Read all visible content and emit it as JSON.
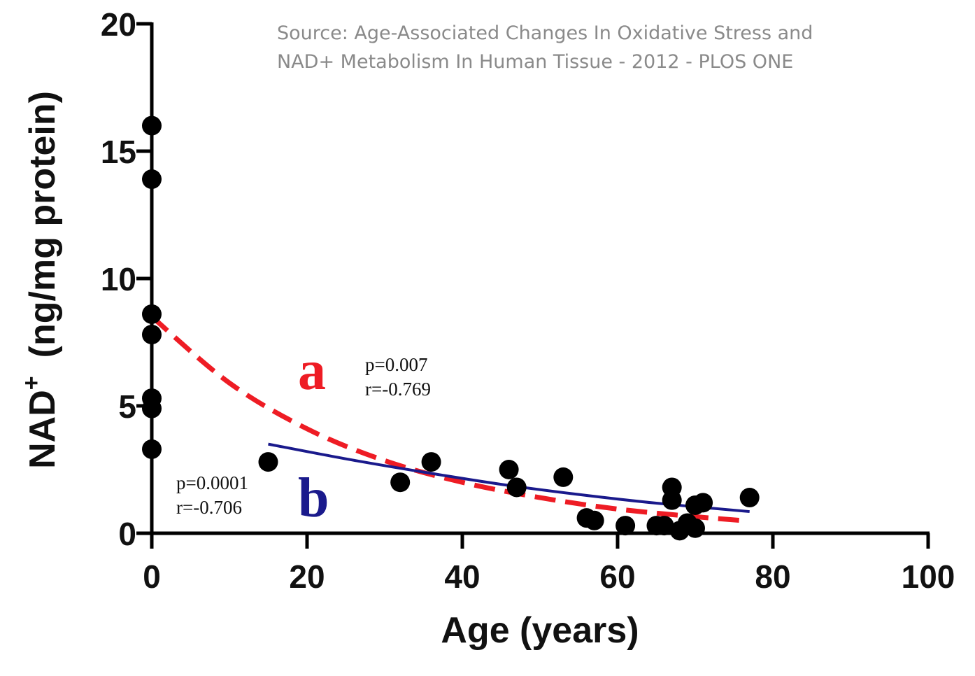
{
  "source": {
    "line1": "Source: Age-Associated Changes In Oxidative Stress and",
    "line2": "NAD+ Metabolism In Human Tissue - 2012 - PLOS ONE"
  },
  "chart_data": {
    "type": "scatter",
    "xlabel": "Age (years)",
    "ylabel_main": "NAD",
    "ylabel_sup": "+",
    "ylabel_unit": "(ng/mg protein)",
    "xlim": [
      0,
      100
    ],
    "ylim": [
      0,
      20
    ],
    "x_ticks": [
      0,
      20,
      40,
      60,
      80,
      100
    ],
    "y_ticks": [
      0,
      5,
      10,
      15,
      20
    ],
    "grid": false,
    "points": [
      {
        "x": 0,
        "y": 16.0
      },
      {
        "x": 0,
        "y": 13.9
      },
      {
        "x": 0,
        "y": 8.6
      },
      {
        "x": 0,
        "y": 7.8
      },
      {
        "x": 0,
        "y": 5.3
      },
      {
        "x": 0,
        "y": 4.9
      },
      {
        "x": 0,
        "y": 3.3
      },
      {
        "x": 15,
        "y": 2.8
      },
      {
        "x": 32,
        "y": 2.0
      },
      {
        "x": 36,
        "y": 2.8
      },
      {
        "x": 46,
        "y": 2.5
      },
      {
        "x": 47,
        "y": 1.8
      },
      {
        "x": 53,
        "y": 2.2
      },
      {
        "x": 56,
        "y": 0.6
      },
      {
        "x": 57,
        "y": 0.5
      },
      {
        "x": 61,
        "y": 0.3
      },
      {
        "x": 65,
        "y": 0.3
      },
      {
        "x": 66,
        "y": 0.3
      },
      {
        "x": 67,
        "y": 1.8
      },
      {
        "x": 67,
        "y": 1.3
      },
      {
        "x": 68,
        "y": 0.1
      },
      {
        "x": 69,
        "y": 0.4
      },
      {
        "x": 70,
        "y": 1.1
      },
      {
        "x": 70,
        "y": 0.2
      },
      {
        "x": 71,
        "y": 1.2
      },
      {
        "x": 77,
        "y": 1.4
      }
    ],
    "series": [
      {
        "label": "a",
        "style": "dashed",
        "color": "#ee1c24",
        "x": [
          0,
          10,
          20,
          30,
          40,
          50,
          60,
          70,
          76
        ],
        "y": [
          8.5,
          5.9,
          4.1,
          2.85,
          2.0,
          1.4,
          0.95,
          0.65,
          0.5
        ],
        "p": "p=0.007",
        "r": "r=-0.769"
      },
      {
        "label": "b",
        "style": "solid",
        "color": "#1a1a8c",
        "x": [
          15,
          25,
          35,
          45,
          55,
          65,
          77
        ],
        "y": [
          3.5,
          2.92,
          2.4,
          1.92,
          1.52,
          1.18,
          0.85
        ],
        "p": "p=0.0001",
        "r": "r=-0.706"
      }
    ]
  }
}
